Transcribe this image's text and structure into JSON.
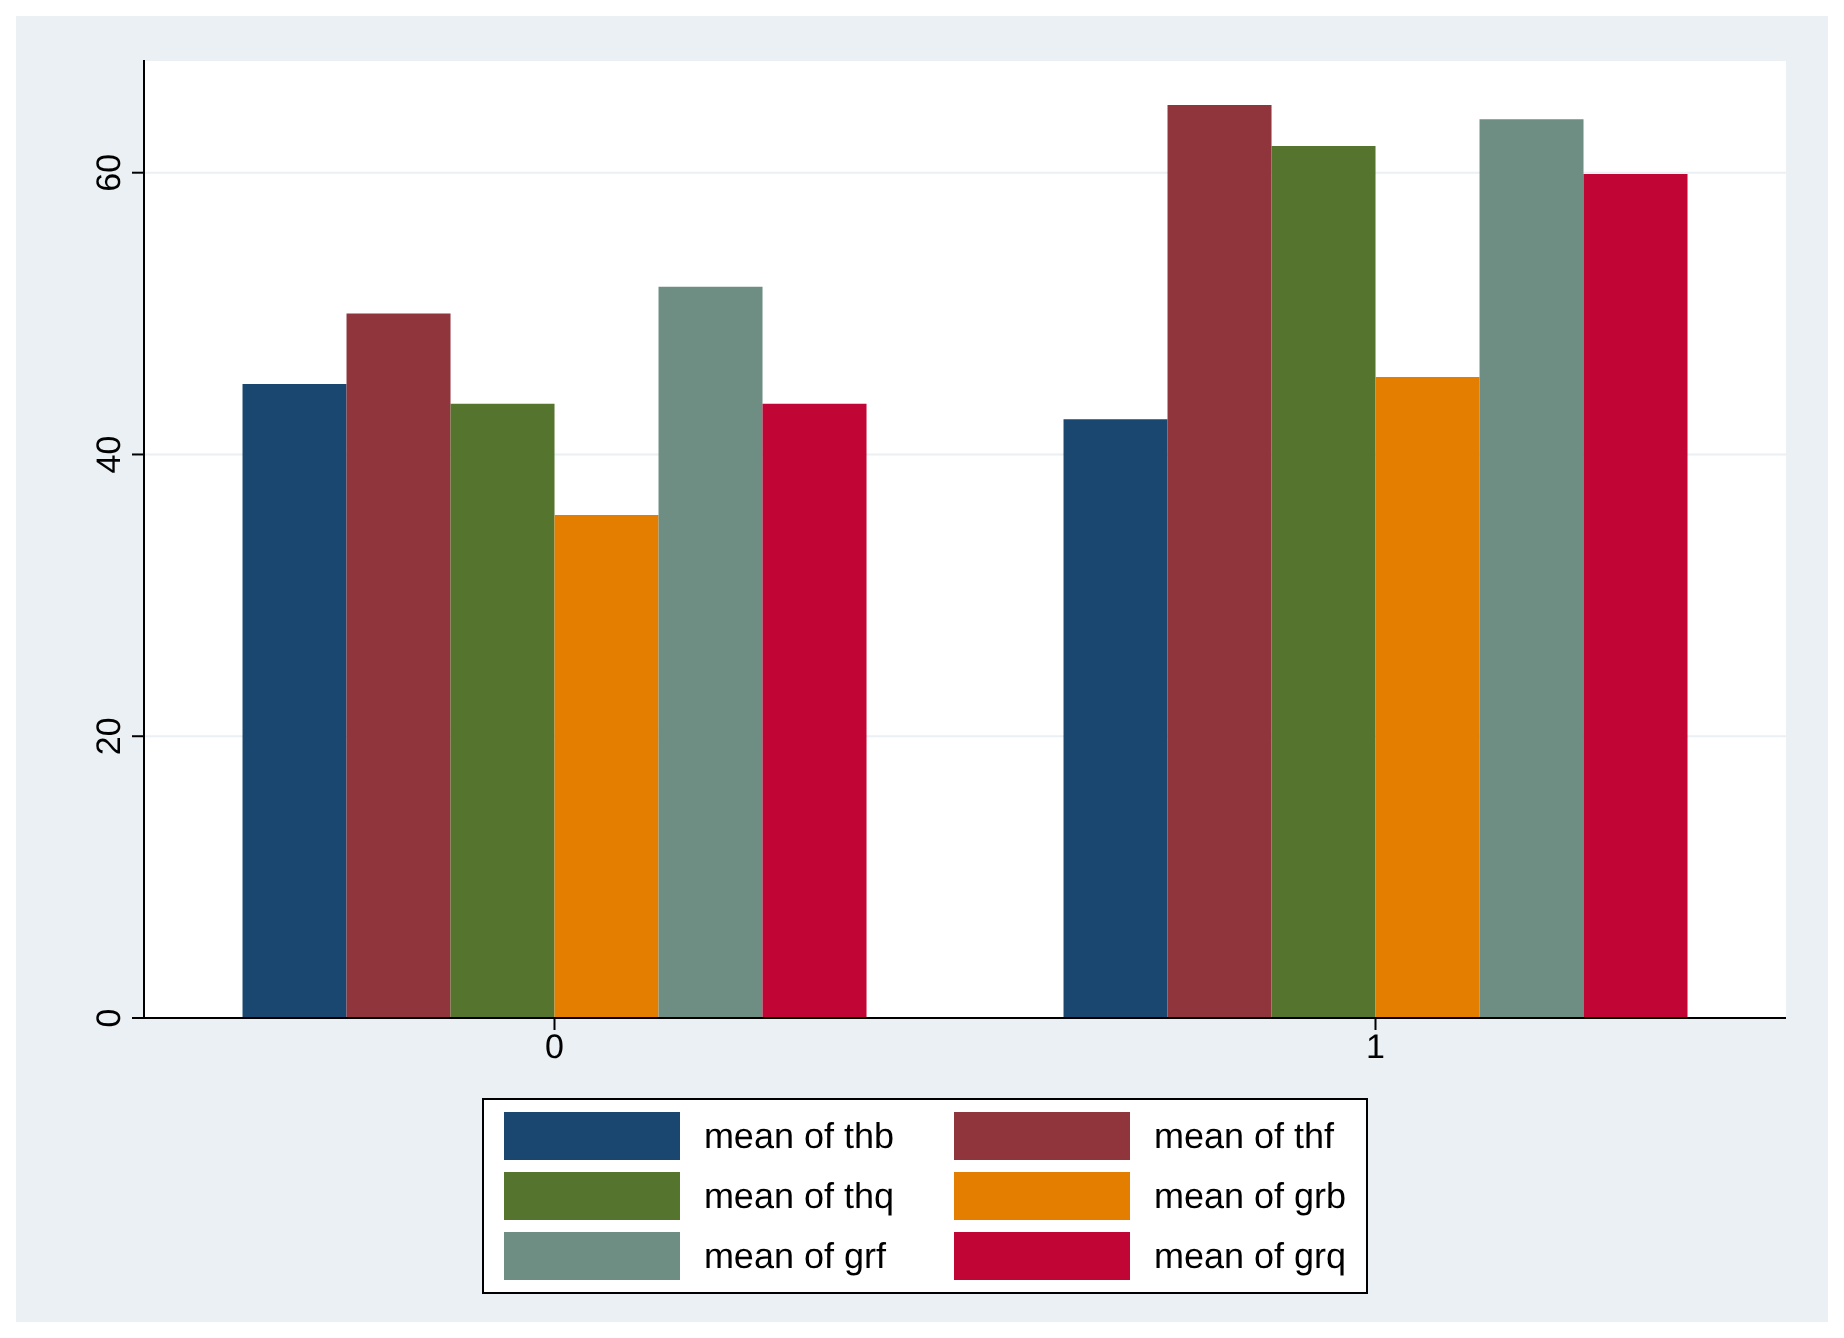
{
  "chart_data": {
    "type": "bar",
    "categories": [
      "0",
      "1"
    ],
    "series": [
      {
        "name": "mean of thb",
        "color": "#1a476f",
        "values": [
          45.0,
          42.5
        ]
      },
      {
        "name": "mean of thf",
        "color": "#90353b",
        "values": [
          50.0,
          64.8
        ]
      },
      {
        "name": "mean of thq",
        "color": "#55752f",
        "values": [
          43.6,
          61.9
        ]
      },
      {
        "name": "mean of grb",
        "color": "#e37e00",
        "values": [
          35.7,
          45.5
        ]
      },
      {
        "name": "mean of grf",
        "color": "#6e8e84",
        "values": [
          51.9,
          63.8
        ]
      },
      {
        "name": "mean of grq",
        "color": "#c10534",
        "values": [
          43.6,
          59.9
        ]
      }
    ],
    "ylim": [
      0,
      68
    ],
    "yticks": [
      0,
      20,
      40,
      60
    ],
    "grid": "y",
    "legend": "bottom"
  }
}
